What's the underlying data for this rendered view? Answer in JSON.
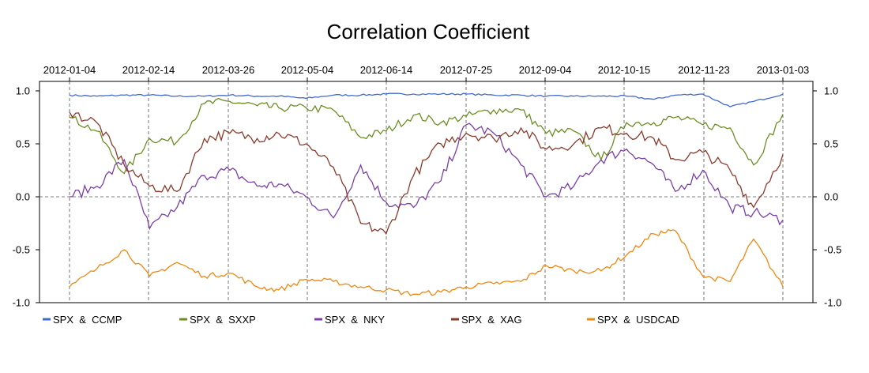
{
  "chart_data": {
    "type": "line",
    "title": "Correlation Coefficient",
    "xlabel": "",
    "ylabel": "",
    "x_ticks": [
      "2012-01-04",
      "2012-02-14",
      "2012-03-26",
      "2012-05-04",
      "2012-06-14",
      "2012-07-25",
      "2012-09-04",
      "2012-10-15",
      "2012-11-23",
      "2013-01-03"
    ],
    "y_ticks": [
      "1.0",
      "0.5",
      "0.0",
      "-0.5",
      "-1.0"
    ],
    "y_tick_values": [
      1.0,
      0.5,
      0.0,
      -0.5,
      -1.0
    ],
    "ylim": [
      -1.0,
      1.0
    ],
    "x_range": [
      "2012-01-04",
      "2013-01-03"
    ],
    "x_dates": [
      "2012-01-04",
      "2012-01-18",
      "2012-02-01",
      "2012-02-14",
      "2012-02-28",
      "2012-03-13",
      "2012-03-26",
      "2012-04-09",
      "2012-04-20",
      "2012-05-04",
      "2012-05-18",
      "2012-06-01",
      "2012-06-14",
      "2012-06-28",
      "2012-07-12",
      "2012-07-25",
      "2012-08-08",
      "2012-08-22",
      "2012-09-04",
      "2012-09-18",
      "2012-10-02",
      "2012-10-15",
      "2012-10-29",
      "2012-11-09",
      "2012-11-23",
      "2012-12-07",
      "2012-12-19",
      "2013-01-03"
    ],
    "grid": "vertical dashed at x ticks; horizontal dashed at 0",
    "legend_position": "bottom",
    "series": [
      {
        "name": "SPX  &  CCMP",
        "color": "#4169cd",
        "values": [
          0.96,
          0.95,
          0.96,
          0.96,
          0.95,
          0.95,
          0.96,
          0.95,
          0.95,
          0.93,
          0.96,
          0.96,
          0.97,
          0.97,
          0.97,
          0.97,
          0.96,
          0.96,
          0.95,
          0.95,
          0.95,
          0.95,
          0.92,
          0.96,
          0.97,
          0.85,
          0.9,
          0.97
        ]
      },
      {
        "name": "SPX  &  SXXP",
        "color": "#6b8e23",
        "values": [
          0.75,
          0.62,
          0.22,
          0.55,
          0.52,
          0.88,
          0.9,
          0.86,
          0.84,
          0.84,
          0.82,
          0.56,
          0.62,
          0.77,
          0.7,
          0.76,
          0.82,
          0.82,
          0.6,
          0.62,
          0.35,
          0.7,
          0.7,
          0.75,
          0.68,
          0.65,
          0.3,
          0.78
        ]
      },
      {
        "name": "SPX  &  NKY",
        "color": "#7b3fa8",
        "values": [
          0.0,
          0.1,
          0.35,
          -0.3,
          -0.1,
          0.2,
          0.25,
          0.1,
          0.12,
          0.0,
          -0.2,
          0.3,
          -0.05,
          -0.1,
          0.15,
          0.68,
          0.6,
          0.3,
          0.0,
          0.1,
          0.35,
          0.45,
          0.3,
          0.05,
          0.25,
          -0.1,
          -0.15,
          -0.22
        ]
      },
      {
        "name": "SPX  &  XAG",
        "color": "#8b3a2a",
        "values": [
          0.8,
          0.7,
          0.3,
          0.1,
          0.05,
          0.55,
          0.6,
          0.55,
          0.6,
          0.5,
          0.28,
          -0.25,
          -0.35,
          0.2,
          0.5,
          0.6,
          0.55,
          0.65,
          0.45,
          0.5,
          0.65,
          0.6,
          0.55,
          0.35,
          0.42,
          0.25,
          -0.1,
          0.4
        ]
      },
      {
        "name": "SPX  &  USDCAD",
        "color": "#f0870f",
        "values": [
          -0.85,
          -0.68,
          -0.5,
          -0.75,
          -0.62,
          -0.75,
          -0.72,
          -0.85,
          -0.88,
          -0.78,
          -0.8,
          -0.85,
          -0.88,
          -0.92,
          -0.9,
          -0.85,
          -0.82,
          -0.8,
          -0.65,
          -0.7,
          -0.7,
          -0.55,
          -0.35,
          -0.32,
          -0.75,
          -0.8,
          -0.4,
          -0.85
        ]
      }
    ]
  }
}
